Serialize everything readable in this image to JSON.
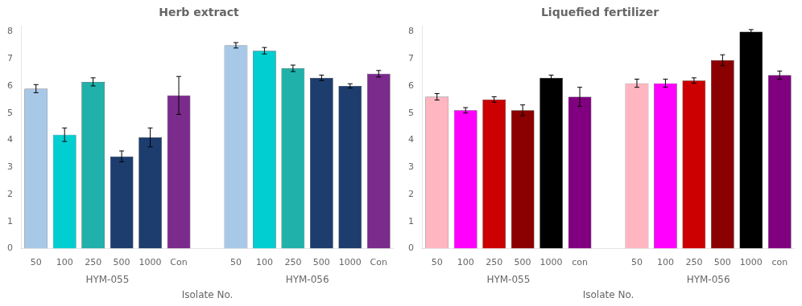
{
  "chart_data": [
    {
      "type": "bar",
      "title": "Herb extract",
      "x_label": "Isolate No.",
      "categories": [
        "50",
        "100",
        "250",
        "500",
        "1000",
        "Con"
      ],
      "series": [
        {
          "name": "HYM-055",
          "values": [
            5.9,
            4.2,
            6.15,
            3.4,
            4.1,
            5.65
          ],
          "errors": [
            0.15,
            0.25,
            0.15,
            0.2,
            0.35,
            0.7
          ],
          "colors": [
            "#A8C8E8",
            "#00CED1",
            "#20B2AA",
            "#1C3D6E",
            "#1C3D6E",
            "#7B2B8B"
          ]
        },
        {
          "name": "HYM-056",
          "values": [
            7.5,
            7.3,
            6.65,
            6.3,
            6.0,
            6.45
          ],
          "errors": [
            0.1,
            0.12,
            0.12,
            0.1,
            0.08,
            0.12
          ],
          "colors": [
            "#A8C8E8",
            "#00CED1",
            "#20B2AA",
            "#1C3D6E",
            "#1C3D6E",
            "#7B2B8B"
          ]
        }
      ],
      "ylim": [
        0,
        8.2
      ],
      "yticks": [
        0,
        1,
        2,
        3,
        4,
        5,
        6,
        7,
        8
      ],
      "grid": false
    },
    {
      "type": "bar",
      "title": "Liquefied fertilizer",
      "x_label": "Isolate No.",
      "categories": [
        "50",
        "100",
        "250",
        "500",
        "1000",
        "con"
      ],
      "series": [
        {
          "name": "HYM-055",
          "values": [
            5.6,
            5.1,
            5.5,
            5.1,
            6.3,
            5.6
          ],
          "errors": [
            0.12,
            0.1,
            0.1,
            0.2,
            0.1,
            0.35
          ],
          "colors": [
            "#FFB6C1",
            "#FF00FF",
            "#CC0000",
            "#8B0000",
            "#000000",
            "#800080"
          ]
        },
        {
          "name": "HYM-056",
          "values": [
            6.1,
            6.1,
            6.2,
            6.95,
            8.0,
            6.4
          ],
          "errors": [
            0.15,
            0.15,
            0.1,
            0.2,
            0.08,
            0.15
          ],
          "colors": [
            "#FFB6C1",
            "#FF00FF",
            "#CC0000",
            "#8B0000",
            "#000000",
            "#800080"
          ]
        }
      ],
      "ylim": [
        0,
        8.2
      ],
      "yticks": [
        0,
        1,
        2,
        3,
        4,
        5,
        6,
        7,
        8
      ],
      "grid": false
    }
  ]
}
